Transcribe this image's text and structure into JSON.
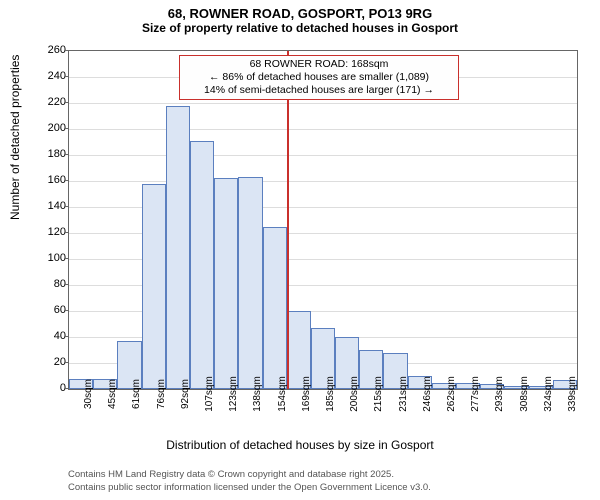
{
  "title": "68, ROWNER ROAD, GOSPORT, PO13 9RG",
  "subtitle": "Size of property relative to detached houses in Gosport",
  "chart": {
    "type": "histogram",
    "y_axis_label": "Number of detached properties",
    "x_axis_label": "Distribution of detached houses by size in Gosport",
    "bar_fill": "#dbe5f4",
    "bar_stroke": "#5b7fbf",
    "marker_color": "#c9302c",
    "background": "#ffffff",
    "grid_color": "#dddddd",
    "ylim": [
      0,
      260
    ],
    "ytick_step": 20,
    "yticks": [
      0,
      20,
      40,
      60,
      80,
      100,
      120,
      140,
      160,
      180,
      200,
      220,
      240,
      260
    ],
    "x_categories": [
      "30sqm",
      "45sqm",
      "61sqm",
      "76sqm",
      "92sqm",
      "107sqm",
      "123sqm",
      "138sqm",
      "154sqm",
      "169sqm",
      "185sqm",
      "200sqm",
      "215sqm",
      "231sqm",
      "246sqm",
      "262sqm",
      "277sqm",
      "293sqm",
      "308sqm",
      "324sqm",
      "339sqm"
    ],
    "values": [
      8,
      8,
      37,
      158,
      218,
      191,
      162,
      163,
      125,
      60,
      47,
      40,
      30,
      28,
      10,
      5,
      5,
      4,
      2,
      2,
      7
    ],
    "marker_index": 9,
    "annotation": {
      "line1": "68 ROWNER ROAD: 168sqm",
      "line2": "← 86% of detached houses are smaller (1,089)",
      "line3": "14% of semi-detached houses are larger (171) →"
    }
  },
  "footer": {
    "line1": "Contains HM Land Registry data © Crown copyright and database right 2025.",
    "line2": "Contains public sector information licensed under the Open Government Licence v3.0."
  }
}
